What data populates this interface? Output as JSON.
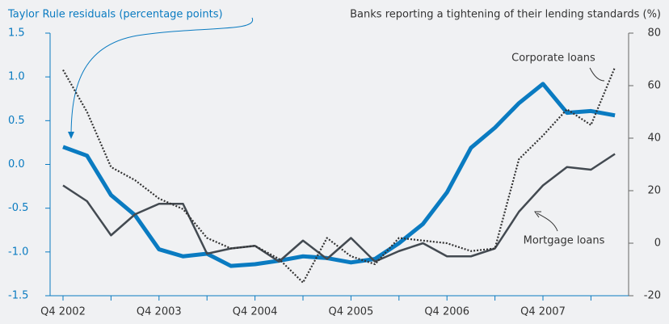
{
  "chart_data": {
    "type": "line",
    "title": "Taylor Rule residuals (percentage points)",
    "y2_title": "Banks reporting a tightening of their lending standards (%)",
    "annotations": [
      "Corporate loans",
      "Mortgage loans"
    ],
    "categories": [
      "Q4 2002",
      null,
      null,
      null,
      "Q4 2003",
      null,
      null,
      null,
      "Q4 2004",
      null,
      null,
      null,
      "Q4 2005",
      null,
      null,
      null,
      "Q4 2006",
      null,
      null,
      null,
      "Q4 2007",
      null,
      null,
      null
    ],
    "series": [
      {
        "name": "Taylor Rule residuals",
        "color": "#0a7bc1",
        "axis": "y",
        "style": "solid",
        "values": [
          0.2,
          0.1,
          -0.35,
          -0.58,
          -0.97,
          -1.05,
          -1.02,
          -1.16,
          -1.14,
          -1.1,
          -1.05,
          -1.07,
          -1.12,
          -1.08,
          -0.9,
          -0.68,
          -0.32,
          0.19,
          0.42,
          0.7,
          0.92,
          0.59,
          0.61,
          0.56
        ]
      },
      {
        "name": "Mortgage loans",
        "color": "#434a51",
        "axis": "y2",
        "style": "solid",
        "values": [
          22,
          16,
          3,
          11,
          15,
          15,
          -4,
          -2,
          -1,
          -7,
          1,
          -6,
          2,
          -7,
          -3,
          0,
          -5,
          -5,
          -2,
          12,
          22,
          29,
          28,
          34
        ]
      },
      {
        "name": "Corporate loans",
        "color": "#333333",
        "axis": "y2",
        "style": "dotted",
        "values": [
          66,
          50,
          29,
          24,
          17,
          13,
          2,
          -2,
          -1,
          -6,
          -15,
          2,
          -5,
          -8,
          2,
          1,
          0,
          -3,
          -2,
          32,
          41,
          51,
          45,
          67
        ]
      }
    ],
    "ylim": [
      -1.5,
      1.5
    ],
    "yticks": [
      1.5,
      {
        "value": 1,
        "label": "1.0"
      },
      0.5,
      {
        "value": 0,
        "label": "0.0"
      },
      -0.5,
      {
        "value": -1,
        "label": "-1.0"
      },
      -1.5
    ],
    "y2lim": [
      -20,
      80
    ],
    "y2ticks": [
      80,
      60,
      40,
      20,
      0,
      -20
    ]
  }
}
